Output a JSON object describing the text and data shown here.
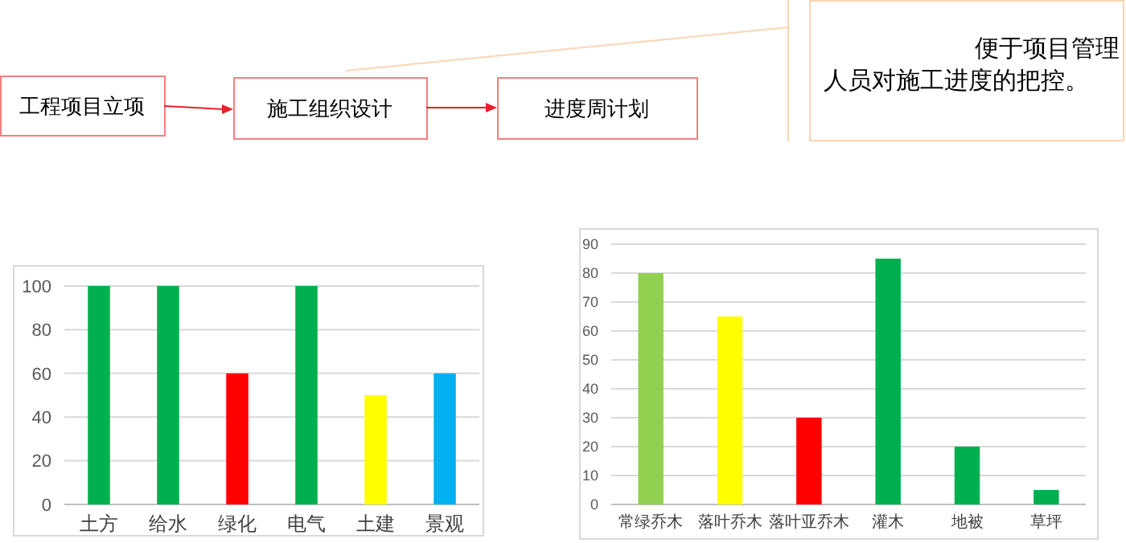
{
  "chart_data": [
    {
      "type": "other",
      "annotations": [
        "工程项目立项",
        "施工组织设计",
        "进度周计划",
        "便于项目管理人员对施工进度的把控。"
      ]
    },
    {
      "type": "bar",
      "categories": [
        "土方",
        "给水",
        "绿化",
        "电气",
        "土建",
        "景观"
      ],
      "values": [
        100,
        100,
        60,
        100,
        50,
        60
      ],
      "colors": [
        "#00b050",
        "#00b050",
        "#ff0000",
        "#00b050",
        "#ffff00",
        "#00b0f0"
      ],
      "ylim": [
        0,
        100
      ],
      "yticks": [
        0,
        20,
        40,
        60,
        80,
        100
      ],
      "grid": "y"
    },
    {
      "type": "bar",
      "categories": [
        "常绿乔木",
        "落叶乔木",
        "落叶亚乔木",
        "灌木",
        "地被",
        "草坪"
      ],
      "values": [
        80,
        65,
        30,
        85,
        20,
        5
      ],
      "colors": [
        "#92d050",
        "#ffff00",
        "#ff0000",
        "#00b050",
        "#00b050",
        "#00b050"
      ],
      "ylim": [
        0,
        90
      ],
      "yticks": [
        0,
        10,
        20,
        30,
        40,
        50,
        60,
        70,
        80,
        90
      ],
      "grid": "y"
    }
  ]
}
